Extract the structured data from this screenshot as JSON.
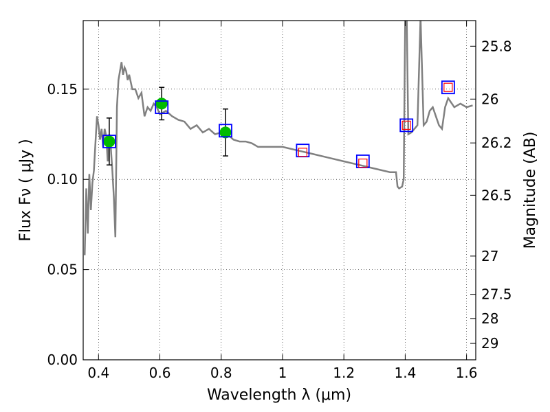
{
  "chart_data": {
    "type": "line",
    "xlabel": "Wavelength  λ (μm)",
    "ylabel": "Flux  Fν  ( μJy )",
    "y2label": "Magnitude (AB)",
    "xlim": [
      0.35,
      1.63
    ],
    "ylim": [
      0.0,
      0.188
    ],
    "grid": true,
    "x_ticks": [
      0.4,
      0.6,
      0.8,
      1.0,
      1.2,
      1.4,
      1.6
    ],
    "x_tick_labels": [
      "0.4",
      "0.6",
      "0.8",
      "1",
      "1.2",
      "1.4",
      "1.6"
    ],
    "y_ticks": [
      0.0,
      0.05,
      0.1,
      0.15
    ],
    "y_tick_labels": [
      "0.00",
      "0.05",
      "0.10",
      "0.15"
    ],
    "mag_ticks": [
      {
        "label": "25.8",
        "flux": 0.1738
      },
      {
        "label": "26",
        "flux": 0.1445
      },
      {
        "label": "26.2",
        "flux": 0.1202
      },
      {
        "label": "26.5",
        "flux": 0.0912
      },
      {
        "label": "27",
        "flux": 0.0575
      },
      {
        "label": "27.5",
        "flux": 0.0363
      },
      {
        "label": "28",
        "flux": 0.0229
      },
      {
        "label": "29",
        "flux": 0.0091
      }
    ],
    "colors": {
      "model": "#808080",
      "observed": "#00bb00",
      "model_box": "#0000ff",
      "predicted": "#ff0000",
      "errorbar": "#000000"
    },
    "model_sed": {
      "x": [
        0.355,
        0.36,
        0.365,
        0.37,
        0.375,
        0.38,
        0.385,
        0.39,
        0.395,
        0.4,
        0.405,
        0.41,
        0.415,
        0.42,
        0.425,
        0.43,
        0.435,
        0.44,
        0.445,
        0.45,
        0.455,
        0.46,
        0.465,
        0.47,
        0.475,
        0.48,
        0.485,
        0.49,
        0.495,
        0.5,
        0.51,
        0.52,
        0.53,
        0.54,
        0.55,
        0.56,
        0.57,
        0.58,
        0.59,
        0.6,
        0.62,
        0.64,
        0.66,
        0.68,
        0.7,
        0.72,
        0.74,
        0.76,
        0.78,
        0.8,
        0.82,
        0.84,
        0.86,
        0.88,
        0.9,
        0.92,
        0.95,
        1.0,
        1.05,
        1.1,
        1.15,
        1.2,
        1.25,
        1.3,
        1.35,
        1.37,
        1.375,
        1.38,
        1.39,
        1.395,
        1.4,
        1.405,
        1.41,
        1.42,
        1.43,
        1.44,
        1.45,
        1.46,
        1.47,
        1.48,
        1.49,
        1.5,
        1.51,
        1.52,
        1.53,
        1.54,
        1.56,
        1.58,
        1.6,
        1.62
      ],
      "y": [
        0.058,
        0.095,
        0.07,
        0.103,
        0.083,
        0.098,
        0.105,
        0.12,
        0.135,
        0.13,
        0.122,
        0.128,
        0.118,
        0.128,
        0.124,
        0.11,
        0.125,
        0.118,
        0.105,
        0.09,
        0.068,
        0.14,
        0.155,
        0.16,
        0.165,
        0.158,
        0.162,
        0.16,
        0.155,
        0.158,
        0.15,
        0.15,
        0.145,
        0.148,
        0.135,
        0.14,
        0.138,
        0.142,
        0.14,
        0.136,
        0.138,
        0.135,
        0.133,
        0.132,
        0.128,
        0.13,
        0.126,
        0.128,
        0.125,
        0.126,
        0.125,
        0.122,
        0.121,
        0.121,
        0.12,
        0.118,
        0.118,
        0.118,
        0.116,
        0.114,
        0.112,
        0.11,
        0.108,
        0.106,
        0.104,
        0.104,
        0.096,
        0.095,
        0.096,
        0.1,
        0.19,
        0.19,
        0.125,
        0.126,
        0.128,
        0.13,
        0.19,
        0.13,
        0.132,
        0.138,
        0.14,
        0.135,
        0.13,
        0.128,
        0.14,
        0.145,
        0.14,
        0.142,
        0.14,
        0.141
      ]
    },
    "observed_points": [
      {
        "x": 0.435,
        "y": 0.121,
        "err": 0.013
      },
      {
        "x": 0.606,
        "y": 0.142,
        "err": 0.009
      },
      {
        "x": 0.814,
        "y": 0.126,
        "err": 0.013
      }
    ],
    "model_boxes": [
      {
        "x": 0.435,
        "y": 0.121
      },
      {
        "x": 0.606,
        "y": 0.14
      },
      {
        "x": 0.814,
        "y": 0.127
      },
      {
        "x": 1.066,
        "y": 0.116
      },
      {
        "x": 1.262,
        "y": 0.11
      },
      {
        "x": 1.404,
        "y": 0.13
      },
      {
        "x": 1.54,
        "y": 0.151
      }
    ],
    "predicted_boxes": [
      {
        "x": 1.066,
        "y": 0.115
      },
      {
        "x": 1.262,
        "y": 0.109
      },
      {
        "x": 1.404,
        "y": 0.13
      },
      {
        "x": 1.54,
        "y": 0.151
      }
    ]
  }
}
